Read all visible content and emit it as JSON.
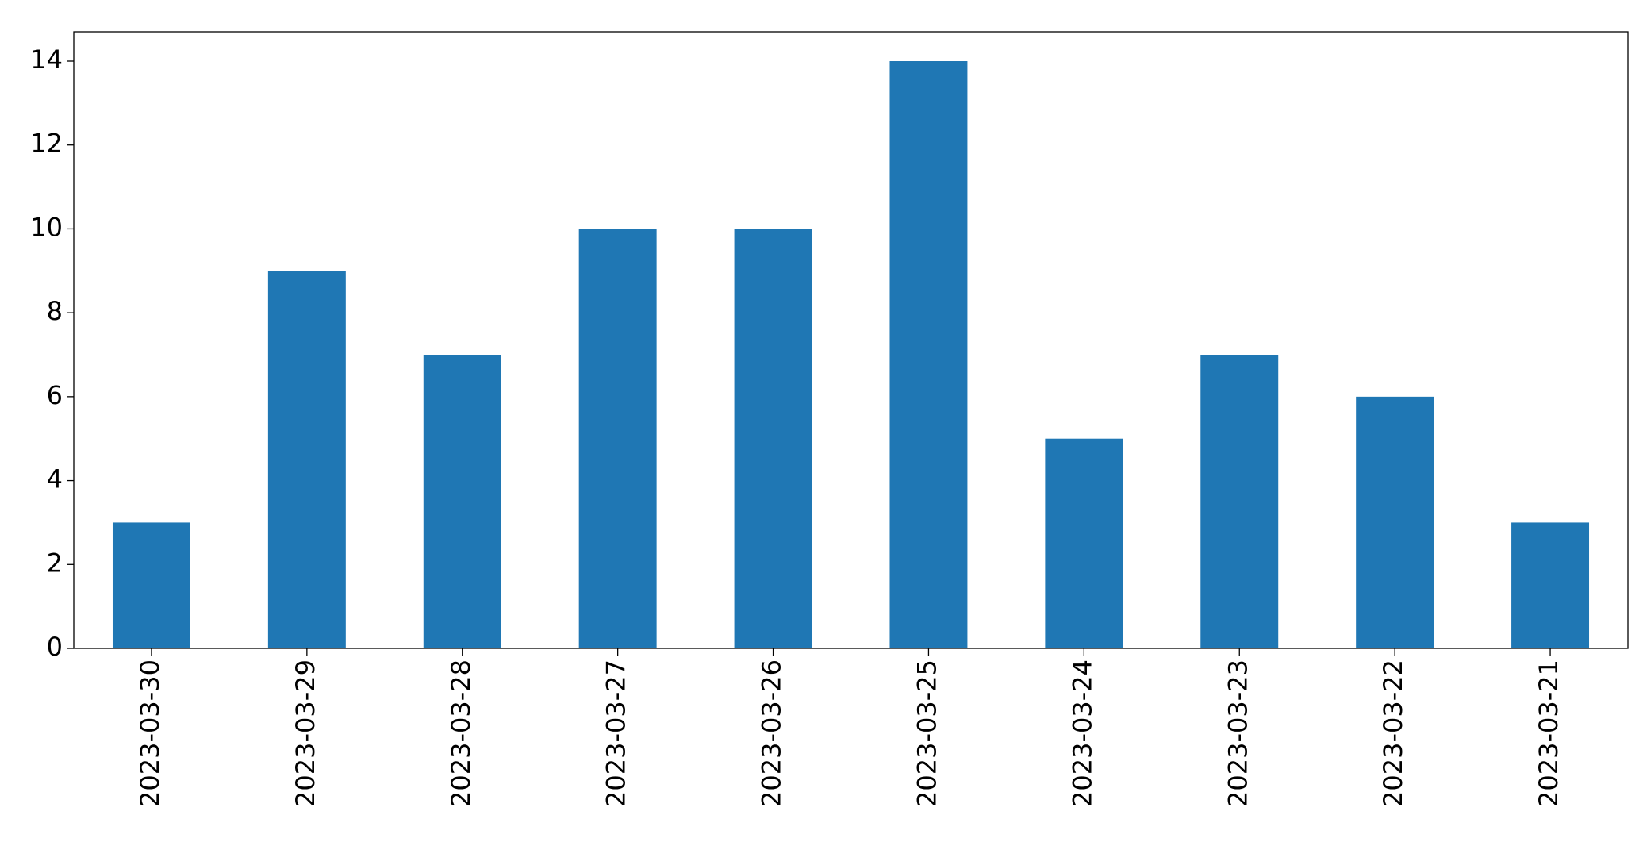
{
  "chart_data": {
    "type": "bar",
    "categories": [
      "2023-03-30",
      "2023-03-29",
      "2023-03-28",
      "2023-03-27",
      "2023-03-26",
      "2023-03-25",
      "2023-03-24",
      "2023-03-23",
      "2023-03-22",
      "2023-03-21"
    ],
    "values": [
      3,
      9,
      7,
      10,
      10,
      14,
      5,
      7,
      6,
      3
    ],
    "color": "#1f77b4",
    "ylim": [
      0,
      14.7
    ],
    "yticks": [
      0,
      2,
      4,
      6,
      8,
      10,
      12,
      14
    ],
    "grid": false
  }
}
